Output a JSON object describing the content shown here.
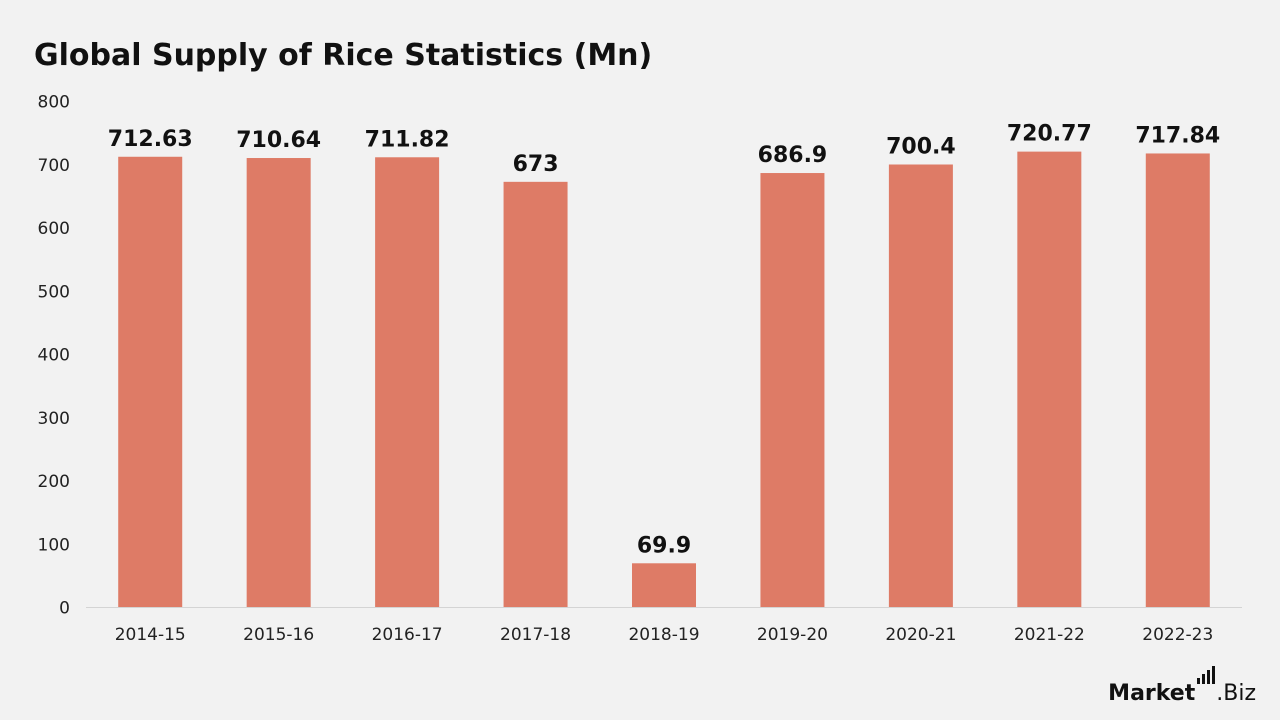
{
  "chart_data": {
    "type": "bar",
    "title": "Global Supply of Rice Statistics (Mn)",
    "categories": [
      "2014-15",
      "2015-16",
      "2016-17",
      "2017-18",
      "2018-19",
      "2019-20",
      "2020-21",
      "2021-22",
      "2022-23"
    ],
    "values": [
      712.63,
      710.64,
      711.82,
      673,
      69.9,
      686.9,
      700.4,
      720.77,
      717.84
    ],
    "value_labels": [
      "712.63",
      "710.64",
      "711.82",
      "673",
      "69.9",
      "686.9",
      "700.4",
      "720.77",
      "717.84"
    ],
    "yticks": [
      "0",
      "100",
      "200",
      "300",
      "400",
      "500",
      "600",
      "700",
      "800"
    ],
    "ylim": [
      0,
      800
    ],
    "xlabel": "",
    "ylabel": "",
    "grid": false,
    "legend": "none",
    "bar_color": "#de7b66"
  },
  "brand": {
    "part1": "Market",
    "part2": ".Biz"
  }
}
